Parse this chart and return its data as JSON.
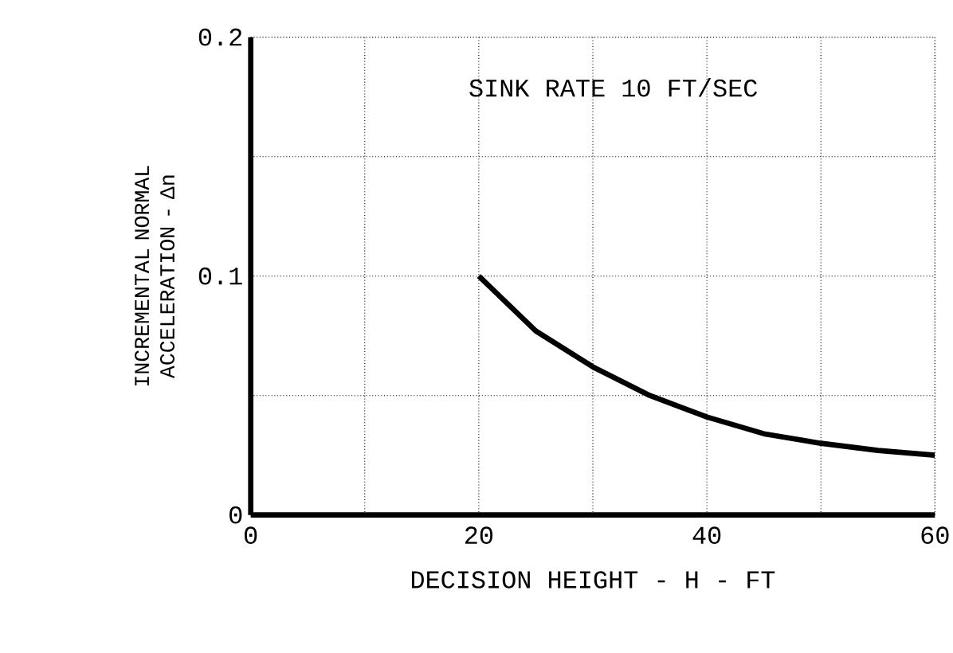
{
  "chart_data": {
    "type": "line",
    "xlabel": "DECISION HEIGHT - H - FT",
    "ylabel": "INCREMENTAL NORMAL ACCELERATION - Δn",
    "annotations": [
      "SINK RATE 10 FT/SEC"
    ],
    "x": [
      20,
      25,
      30,
      35,
      40,
      45,
      50,
      55,
      60
    ],
    "values": [
      0.1,
      0.077,
      0.062,
      0.05,
      0.041,
      0.034,
      0.03,
      0.027,
      0.025
    ],
    "color": "#000000",
    "xlim": [
      0,
      60
    ],
    "ylim": [
      0,
      0.2
    ],
    "xticks": [
      0,
      {
        "value": 10,
        "label": null
      },
      20,
      {
        "value": 30,
        "label": null
      },
      40,
      {
        "value": 50,
        "label": null
      },
      60
    ],
    "yticks": [
      0,
      {
        "value": 0.05,
        "label": null
      },
      0.1,
      {
        "value": 0.15,
        "label": null
      },
      0.2
    ],
    "grid": true
  }
}
